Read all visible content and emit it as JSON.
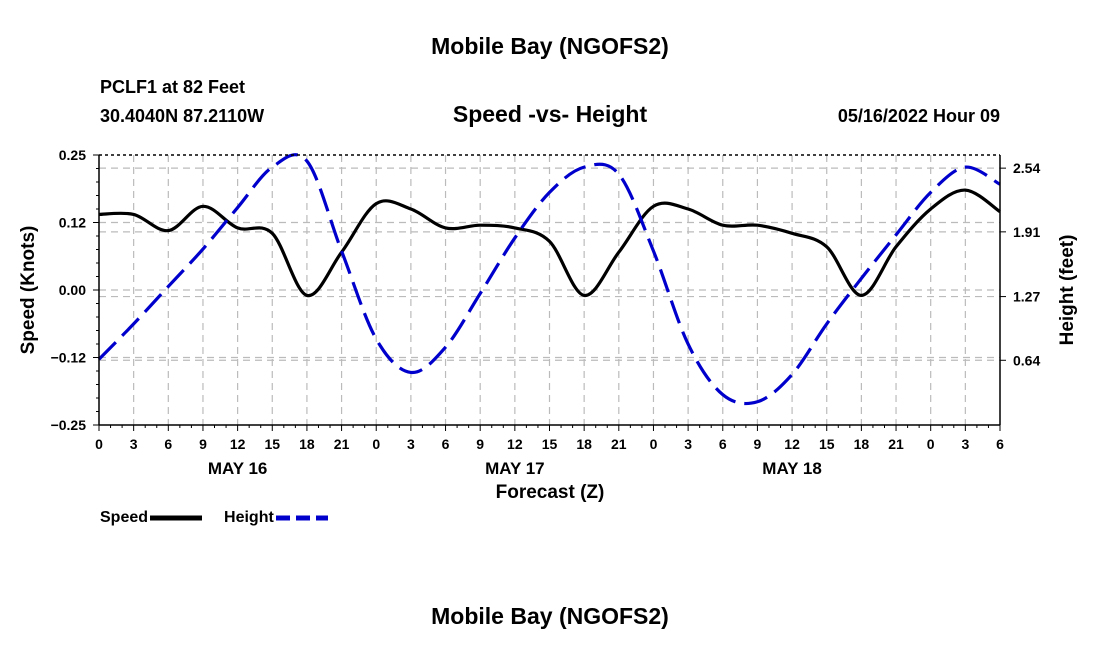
{
  "header": {
    "title": "Mobile Bay (NGOFS2)",
    "station": "PCLF1 at 82 Feet",
    "coords": "30.4040N  87.2110W",
    "datetime": "05/16/2022 Hour 09",
    "footer_title": "Mobile Bay (NGOFS2)"
  },
  "chart_data": {
    "type": "line",
    "title": "Speed -vs- Height",
    "xlabel": "Forecast (Z)",
    "ylabel_left": "Speed (Knots)",
    "ylabel_right": "Height (feet)",
    "xlim": [
      0,
      78
    ],
    "ylim_left": [
      -0.25,
      0.25
    ],
    "ylim_right": [
      0,
      2.67
    ],
    "grid": true,
    "legend_placement": "bottom-left",
    "x_ticks": [
      {
        "x": 0,
        "label": "0"
      },
      {
        "x": 3,
        "label": "3"
      },
      {
        "x": 6,
        "label": "6"
      },
      {
        "x": 9,
        "label": "9"
      },
      {
        "x": 12,
        "label": "12"
      },
      {
        "x": 15,
        "label": "15"
      },
      {
        "x": 18,
        "label": "18"
      },
      {
        "x": 21,
        "label": "21"
      },
      {
        "x": 24,
        "label": "0"
      },
      {
        "x": 27,
        "label": "3"
      },
      {
        "x": 30,
        "label": "6"
      },
      {
        "x": 33,
        "label": "9"
      },
      {
        "x": 36,
        "label": "12"
      },
      {
        "x": 39,
        "label": "15"
      },
      {
        "x": 42,
        "label": "18"
      },
      {
        "x": 45,
        "label": "21"
      },
      {
        "x": 48,
        "label": "0"
      },
      {
        "x": 51,
        "label": "3"
      },
      {
        "x": 54,
        "label": "6"
      },
      {
        "x": 57,
        "label": "9"
      },
      {
        "x": 60,
        "label": "12"
      },
      {
        "x": 63,
        "label": "15"
      },
      {
        "x": 66,
        "label": "18"
      },
      {
        "x": 69,
        "label": "21"
      },
      {
        "x": 72,
        "label": "0"
      },
      {
        "x": 75,
        "label": "3"
      },
      {
        "x": 78,
        "label": "6"
      }
    ],
    "date_labels": [
      {
        "x": 12,
        "label": "MAY 16"
      },
      {
        "x": 36,
        "label": "MAY 17"
      },
      {
        "x": 60,
        "label": "MAY 18"
      }
    ],
    "y_ticks_left": [
      {
        "v": 0.25,
        "label": "0.25"
      },
      {
        "v": 0.125,
        "label": "0.12"
      },
      {
        "v": 0.0,
        "label": "0.00"
      },
      {
        "v": -0.125,
        "label": "−0.12"
      },
      {
        "v": -0.25,
        "label": "−0.25"
      }
    ],
    "y_ticks_right": [
      {
        "v": 2.54,
        "label": "2.54"
      },
      {
        "v": 1.91,
        "label": "1.91"
      },
      {
        "v": 1.27,
        "label": "1.27"
      },
      {
        "v": 0.64,
        "label": "0.64"
      }
    ],
    "series": [
      {
        "name": "Speed",
        "axis": "left",
        "color": "#000000",
        "style": "solid",
        "x": [
          0,
          3,
          6,
          9,
          12,
          15,
          18,
          21,
          24,
          27,
          30,
          33,
          36,
          39,
          42,
          45,
          48,
          51,
          54,
          57,
          60,
          63,
          66,
          69,
          72,
          75,
          78
        ],
        "values": [
          0.14,
          0.14,
          0.11,
          0.155,
          0.115,
          0.105,
          -0.01,
          0.07,
          0.16,
          0.15,
          0.115,
          0.12,
          0.115,
          0.09,
          -0.01,
          0.07,
          0.155,
          0.15,
          0.12,
          0.12,
          0.105,
          0.08,
          -0.01,
          0.08,
          0.15,
          0.185,
          0.145
        ]
      },
      {
        "name": "Height",
        "axis": "right",
        "color": "#0000cc",
        "style": "dashed",
        "x": [
          0,
          3,
          6,
          9,
          12,
          15,
          18,
          21,
          24,
          27,
          30,
          33,
          36,
          39,
          42,
          45,
          48,
          51,
          54,
          57,
          60,
          63,
          66,
          69,
          72,
          75,
          78
        ],
        "values": [
          0.65,
          1.0,
          1.37,
          1.74,
          2.15,
          2.55,
          2.61,
          1.72,
          0.85,
          0.52,
          0.77,
          1.3,
          1.85,
          2.3,
          2.55,
          2.48,
          1.72,
          0.8,
          0.3,
          0.23,
          0.5,
          1.0,
          1.45,
          1.88,
          2.3,
          2.55,
          2.38
        ]
      }
    ],
    "legend": [
      {
        "name": "Speed",
        "color": "#000000",
        "style": "solid"
      },
      {
        "name": "Height",
        "color": "#0000cc",
        "style": "dashed"
      }
    ]
  }
}
